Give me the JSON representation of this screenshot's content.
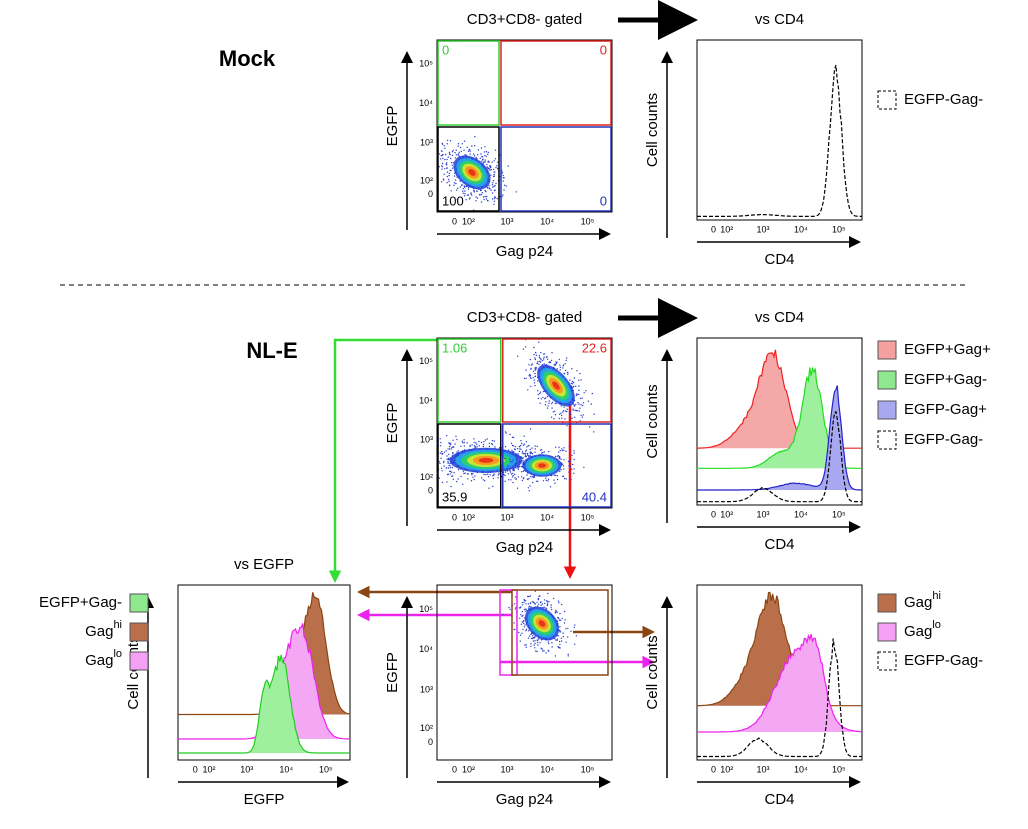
{
  "rows": [
    {
      "label": "Mock"
    },
    {
      "label": "NL-E"
    }
  ],
  "ticks": [
    "0",
    "10²",
    "10³",
    "10⁴",
    "10⁵"
  ],
  "panels": {
    "mock_dot": {
      "title": "CD3+CD8- gated",
      "x_label": "Gag p24",
      "y_label": "EGFP",
      "quadrants": [
        "0",
        "0",
        "100",
        "0"
      ]
    },
    "mock_hist": {
      "title": "vs CD4",
      "x_label": "CD4",
      "y_label": "Cell counts"
    },
    "nle_dot": {
      "title": "CD3+CD8- gated",
      "x_label": "Gag p24",
      "y_label": "EGFP",
      "quadrants": [
        "1.06",
        "22.6",
        "35.9",
        "40.4"
      ]
    },
    "nle_hist": {
      "title": "vs CD4",
      "x_label": "CD4",
      "y_label": "Cell counts"
    },
    "egfp_hist": {
      "title": "vs EGFP",
      "x_label": "EGFP",
      "y_label": "Cell counts"
    },
    "gag_dot": {
      "x_label": "Gag p24",
      "y_label": "EGFP"
    },
    "cd4_hist": {
      "x_label": "CD4",
      "y_label": "Cell counts"
    }
  },
  "legends": {
    "mock": [
      {
        "text": "EGFP-Gag-"
      }
    ],
    "nle": [
      {
        "text": "EGFP+Gag+",
        "color": "#f4a0a0"
      },
      {
        "text": "EGFP+Gag-",
        "color": "#8ee88e"
      },
      {
        "text": "EGFP-Gag+",
        "color": "#a8a8f0"
      },
      {
        "text": "EGFP-Gag-"
      }
    ],
    "egfp": [
      {
        "text": "EGFP+Gag-",
        "color": "#8ee88e"
      },
      {
        "text": "Gag",
        "sup": "hi",
        "color": "#b9704a"
      },
      {
        "text": "Gag",
        "sup": "lo",
        "color": "#f4a0f4"
      }
    ],
    "cd4": [
      {
        "text": "Gag",
        "sup": "hi",
        "color": "#b9704a"
      },
      {
        "text": "Gag",
        "sup": "lo",
        "color": "#f4a0f4"
      },
      {
        "text": "EGFP-Gag-"
      }
    ]
  }
}
